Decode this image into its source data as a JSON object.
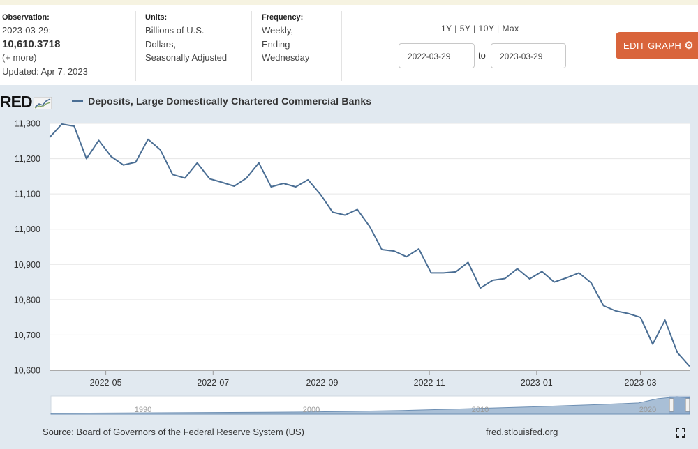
{
  "header": {
    "observation": {
      "label": "Observation:",
      "date": "2023-03-29:",
      "value": "10,610.3718",
      "more": "(+ more)",
      "updated": "Updated: Apr 7, 2023"
    },
    "units": {
      "label": "Units:",
      "lines": [
        "Billions of U.S.",
        "Dollars,",
        "Seasonally Adjusted"
      ]
    },
    "frequency": {
      "label": "Frequency:",
      "lines": [
        "Weekly,",
        "Ending",
        "Wednesday"
      ]
    },
    "ranges": [
      "1Y",
      "5Y",
      "10Y",
      "Max"
    ],
    "date_from": "2022-03-29",
    "date_to": "2023-03-29",
    "to_label": "to",
    "edit_label": "EDIT GRAPH",
    "edit_icon": "gear-icon"
  },
  "logo_text": "RED",
  "footer": {
    "source": "Source: Board of Governors of the Federal Reserve System (US)",
    "site": "fred.stlouisfed.org"
  },
  "colors": {
    "line": "#4a6e94",
    "accent": "#d9643b",
    "panel": "#e1e9f0",
    "plot_bg": "#ffffff"
  },
  "chart_data": {
    "type": "line",
    "title": "Deposits, Large Domestically Chartered Commercial Banks",
    "ylabel": "",
    "ylim": [
      10600,
      11300
    ],
    "yticks": [
      10600,
      10700,
      10800,
      10900,
      11000,
      11100,
      11200,
      11300
    ],
    "ytick_labels": [
      "10,600",
      "10,700",
      "10,800",
      "10,900",
      "11,000",
      "11,100",
      "11,200",
      "11,300"
    ],
    "xlim": [
      "2022-03-30",
      "2023-03-29"
    ],
    "xticks": [
      "2022-05-01",
      "2022-07-01",
      "2022-09-01",
      "2022-11-01",
      "2023-01-01",
      "2023-03-01"
    ],
    "xtick_labels": [
      "2022-05",
      "2022-07",
      "2022-09",
      "2022-11",
      "2023-01",
      "2023-03"
    ],
    "grid": true,
    "series": [
      {
        "name": "Deposits, Large Domestically Chartered Commercial Banks",
        "x": [
          "2022-03-30",
          "2022-04-06",
          "2022-04-13",
          "2022-04-20",
          "2022-04-27",
          "2022-05-04",
          "2022-05-11",
          "2022-05-18",
          "2022-05-25",
          "2022-06-01",
          "2022-06-08",
          "2022-06-15",
          "2022-06-22",
          "2022-06-29",
          "2022-07-06",
          "2022-07-13",
          "2022-07-20",
          "2022-07-27",
          "2022-08-03",
          "2022-08-10",
          "2022-08-17",
          "2022-08-24",
          "2022-08-31",
          "2022-09-07",
          "2022-09-14",
          "2022-09-21",
          "2022-09-28",
          "2022-10-05",
          "2022-10-12",
          "2022-10-19",
          "2022-10-26",
          "2022-11-02",
          "2022-11-09",
          "2022-11-16",
          "2022-11-23",
          "2022-11-30",
          "2022-12-07",
          "2022-12-14",
          "2022-12-21",
          "2022-12-28",
          "2023-01-04",
          "2023-01-11",
          "2023-01-18",
          "2023-01-25",
          "2023-02-01",
          "2023-02-08",
          "2023-02-15",
          "2023-02-22",
          "2023-03-01",
          "2023-03-08",
          "2023-03-15",
          "2023-03-22",
          "2023-03-29"
        ],
        "values": [
          11260,
          11298,
          11292,
          11200,
          11252,
          11206,
          11182,
          11190,
          11255,
          11225,
          11155,
          11145,
          11188,
          11143,
          11133,
          11122,
          11145,
          11188,
          11120,
          11130,
          11120,
          11140,
          11099,
          11048,
          11040,
          11056,
          11008,
          10942,
          10938,
          10922,
          10944,
          10876,
          10876,
          10879,
          10906,
          10833,
          10855,
          10860,
          10888,
          10859,
          10880,
          10850,
          10862,
          10876,
          10848,
          10783,
          10768,
          10761,
          10750,
          10674,
          10742,
          10650,
          10611
        ]
      }
    ]
  },
  "navigator": {
    "labels": [
      "1990",
      "2000",
      "2010",
      "2020"
    ]
  }
}
